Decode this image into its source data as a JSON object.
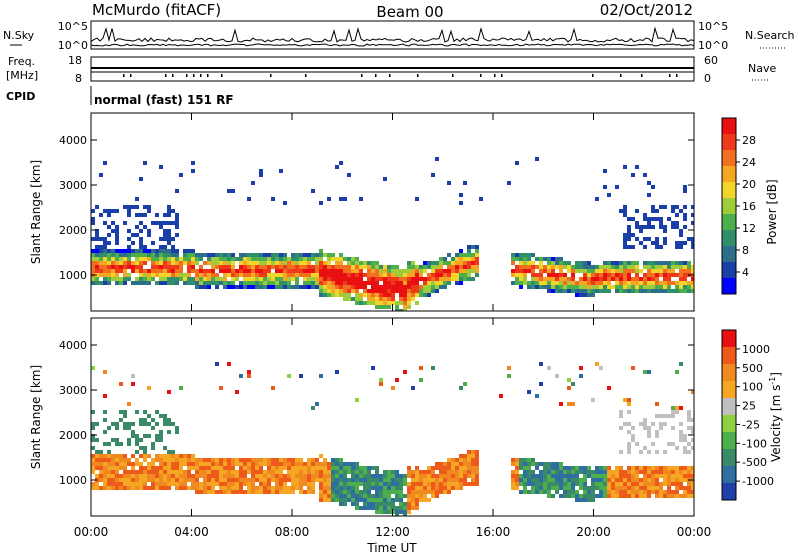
{
  "header": {
    "station": "McMurdo (fitACF)",
    "beam": "Beam 00",
    "date": "02/Oct/2012"
  },
  "status_panels": {
    "nsky_label": "N.Sky",
    "nsky_ticks": [
      "10^5",
      "10^0"
    ],
    "nsearch_label": "N.Search",
    "freq_label_1": "Freq.",
    "freq_label_2": "[MHz]",
    "freq_ticks": [
      "18",
      "8"
    ],
    "nave_label": "Nave",
    "nave_ticks": [
      "60",
      "0"
    ],
    "cpid_label": "CPID",
    "cpid_text": "normal (fast) 151 RF"
  },
  "chart_data": [
    {
      "type": "heatmap",
      "name": "power",
      "ylabel": "Slant Range [km]",
      "ylim": [
        200,
        4600
      ],
      "yticks": [
        1000,
        2000,
        3000,
        4000
      ],
      "xlim": [
        0,
        24
      ],
      "colorbar": {
        "label": "Power [dB]",
        "ticks": [
          "28",
          "24",
          "20",
          "16",
          "12",
          "8",
          "4"
        ],
        "colors": [
          "#0000ff",
          "#1a3fa8",
          "#2d6e8a",
          "#2f8f6a",
          "#4caf4c",
          "#9fcc3a",
          "#f2d52a",
          "#f5a623",
          "#f07020",
          "#ee3a1a",
          "#e81010"
        ]
      }
    },
    {
      "type": "heatmap",
      "name": "velocity",
      "ylabel": "Slant Range [km]",
      "ylim": [
        200,
        4600
      ],
      "yticks": [
        1000,
        2000,
        3000,
        4000
      ],
      "xlim": [
        0,
        24
      ],
      "colorbar": {
        "label": "Velocity [m s",
        "label_sup": "-1",
        "label_end": "]",
        "ticks": [
          "1000",
          "500",
          "100",
          "25",
          "-25",
          "-100",
          "-500",
          "-1000"
        ],
        "colors": [
          "#2040a8",
          "#2e6ea0",
          "#3a8a68",
          "#4caf4c",
          "#8fd040",
          "#c0c0c0",
          "#f5a623",
          "#f08a20",
          "#ee5a1a",
          "#e81010"
        ]
      }
    }
  ],
  "x_axis": {
    "ticks": [
      "00:00",
      "04:00",
      "08:00",
      "12:00",
      "16:00",
      "20:00",
      "00:00"
    ],
    "label": "Time UT"
  },
  "colors": {
    "sky_line": "#000000",
    "axis": "#000000"
  }
}
